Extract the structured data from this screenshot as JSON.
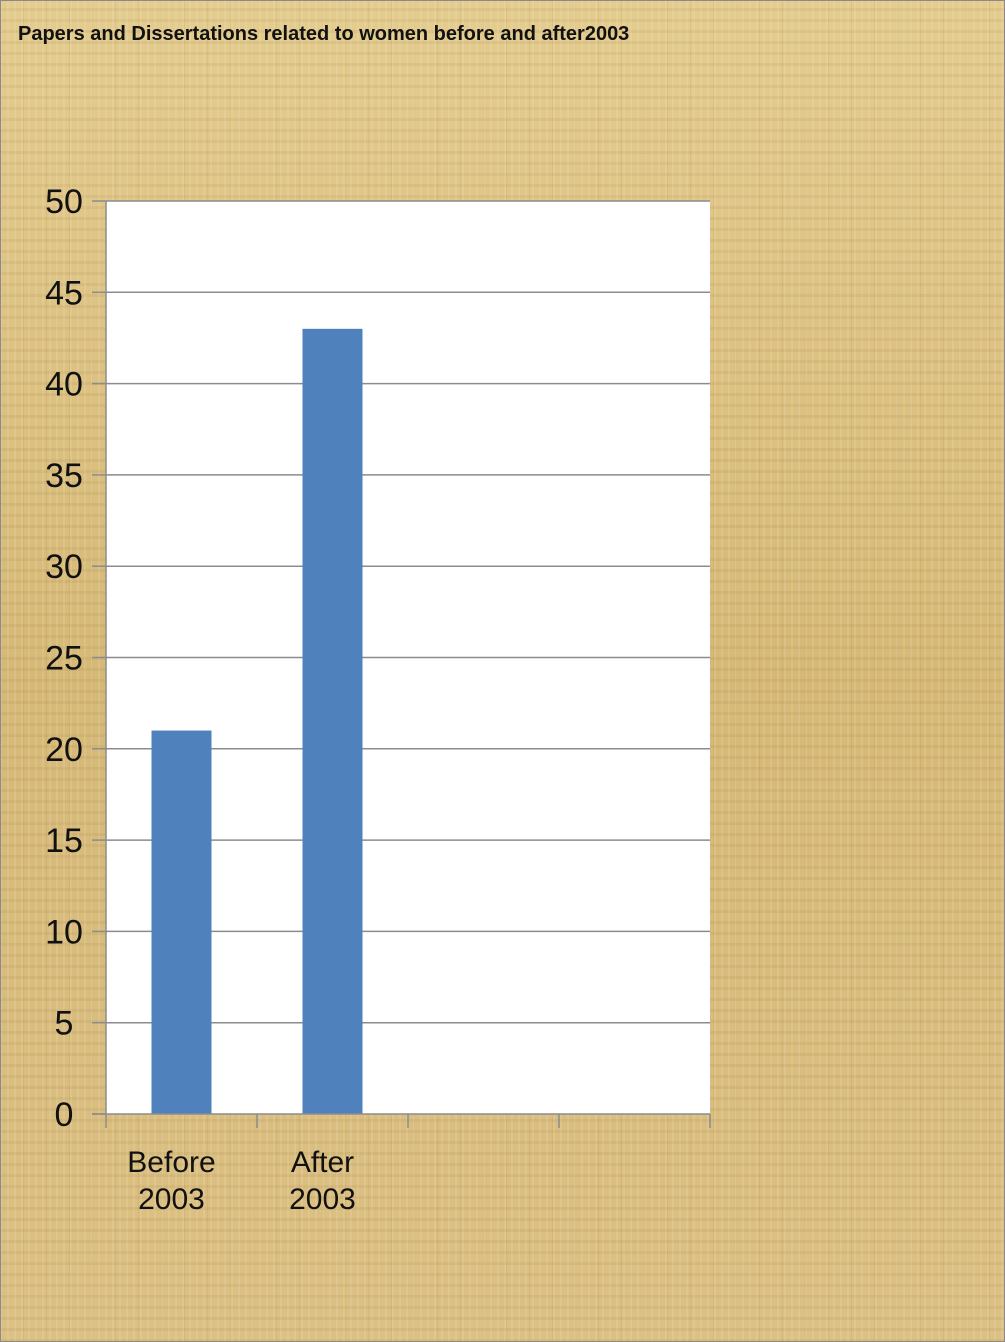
{
  "chart_data": {
    "type": "bar",
    "title": "Papers and Dissertations related to women before and after2003",
    "categories": [
      [
        "Before",
        "2003"
      ],
      [
        "After",
        "2003"
      ]
    ],
    "values": [
      21,
      43
    ],
    "ylim": [
      0,
      50
    ],
    "yticks": [
      0,
      5,
      10,
      15,
      20,
      25,
      30,
      35,
      40,
      45,
      50
    ],
    "slots": 4,
    "grid": true,
    "legend": "none",
    "colors": {
      "bar": "#4f81bd",
      "plot_bg": "#ffffff",
      "grid": "#8c8c8c",
      "axis": "#8c8c8c"
    }
  }
}
